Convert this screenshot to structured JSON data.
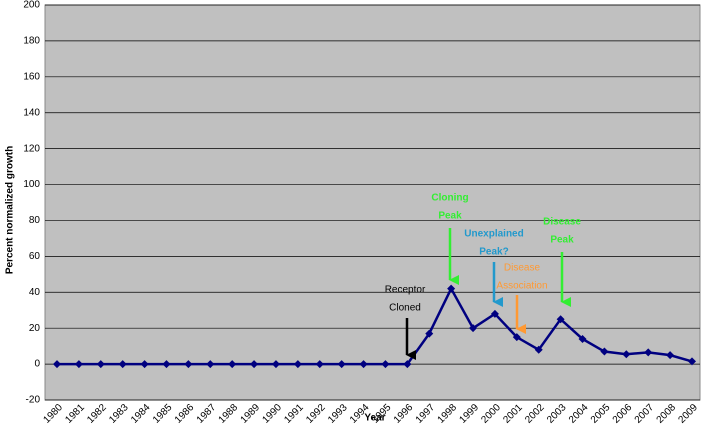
{
  "chart_data": {
    "type": "line",
    "x_label": "Year",
    "y_label": "Percent normalized growth",
    "categories": [
      "1980",
      "1981",
      "1982",
      "1983",
      "1984",
      "1985",
      "1986",
      "1987",
      "1988",
      "1989",
      "1990",
      "1991",
      "1992",
      "1993",
      "1994",
      "1995",
      "1996",
      "1997",
      "1998",
      "1999",
      "2000",
      "2001",
      "2002",
      "2003",
      "2004",
      "2005",
      "2006",
      "2007",
      "2008",
      "2009"
    ],
    "series": [
      {
        "name": "Percent normalized growth",
        "color": "#000080",
        "values": [
          0,
          0,
          0,
          0,
          0,
          0,
          0,
          0,
          0,
          0,
          0,
          0,
          0,
          0,
          0,
          0,
          0,
          17,
          42,
          20,
          28,
          15,
          8,
          25,
          14,
          7,
          5.5,
          6.5,
          5,
          1.5
        ]
      }
    ],
    "ylim": [
      -20,
      200
    ],
    "yticks": [
      -20,
      0,
      20,
      40,
      60,
      80,
      100,
      120,
      140,
      160,
      180,
      200
    ],
    "grid": true,
    "annotations": [
      {
        "text": [
          "Receptor",
          "Cloned"
        ],
        "color": "#000000"
      },
      {
        "text": [
          "Cloning",
          "Peak"
        ],
        "color": "#33ee33"
      },
      {
        "text": [
          "Unexplained",
          "Peak?"
        ],
        "color": "#2299cc"
      },
      {
        "text": [
          "Disease",
          "Association"
        ],
        "color": "#ff9933"
      },
      {
        "text": [
          "Disease",
          "Peak"
        ],
        "color": "#33ee33"
      }
    ]
  }
}
